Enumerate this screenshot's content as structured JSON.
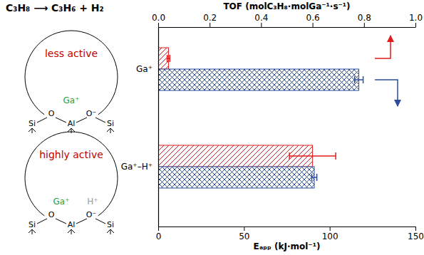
{
  "chart_data": {
    "type": "bar",
    "orientation": "horizontal",
    "categories": [
      "Ga⁺",
      "Ga⁺–H⁺"
    ],
    "ylabel": "Eₐₚₚ (kJ·mol⁻¹)",
    "y2label": "TOF (molC₃H₈·molGa⁻¹·s⁻¹)",
    "ylim": [
      0,
      150
    ],
    "yticks": [
      0,
      50,
      100,
      150
    ],
    "y2lim": [
      0,
      1
    ],
    "y2ticks": [
      {
        "value": 0,
        "label": "0.0"
      },
      {
        "value": 0.2,
        "label": "0.2"
      },
      {
        "value": 0.4,
        "label": "0.4"
      },
      {
        "value": 0.6,
        "label": "0.6"
      },
      {
        "value": 0.8,
        "label": "0.8"
      },
      {
        "value": 1,
        "label": "1.0"
      }
    ],
    "series": [
      {
        "color": "#e41a1c",
        "axis": "y2",
        "values": [
          0.04,
          0.6
        ],
        "errors": [
          0.005,
          0.09
        ]
      },
      {
        "color": "#2b4c9b",
        "values": [
          117,
          91
        ],
        "errors": [
          2.5,
          1.5
        ]
      }
    ],
    "annotations": [
      "C₃H₈ ⟶ C₃H₆ + H₂",
      "less active",
      "highly active",
      "Ga⁺",
      "H⁺",
      "Si",
      "O",
      "O⁻",
      "Al"
    ]
  }
}
